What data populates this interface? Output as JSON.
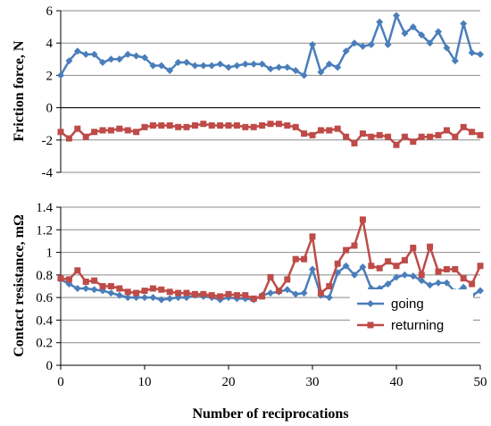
{
  "chart_data": [
    {
      "type": "line",
      "ylabel": "Friction force, N",
      "xlim": [
        0,
        50
      ],
      "ylim": [
        -4,
        6
      ],
      "yticks": [
        -4,
        -2,
        0,
        2,
        4,
        6
      ],
      "xticks": [],
      "grid": true,
      "series": [
        {
          "color": "#4A7EBB",
          "marker": "diamond",
          "x": [
            0,
            1,
            2,
            3,
            4,
            5,
            6,
            7,
            8,
            9,
            10,
            11,
            12,
            13,
            14,
            15,
            16,
            17,
            18,
            19,
            20,
            21,
            22,
            23,
            24,
            25,
            26,
            27,
            28,
            29,
            30,
            31,
            32,
            33,
            34,
            35,
            36,
            37,
            38,
            39,
            40,
            41,
            42,
            43,
            44,
            45,
            46,
            47,
            48,
            49,
            50
          ],
          "y": [
            2.0,
            2.9,
            3.5,
            3.3,
            3.3,
            2.8,
            3.0,
            3.0,
            3.3,
            3.2,
            3.1,
            2.6,
            2.6,
            2.3,
            2.8,
            2.8,
            2.6,
            2.6,
            2.6,
            2.7,
            2.5,
            2.6,
            2.7,
            2.7,
            2.7,
            2.4,
            2.5,
            2.5,
            2.3,
            2.0,
            3.9,
            2.2,
            2.7,
            2.5,
            3.5,
            4.0,
            3.8,
            3.9,
            5.3,
            3.9,
            5.7,
            4.6,
            5.0,
            4.5,
            4.0,
            4.7,
            3.7,
            2.9,
            5.2,
            3.4,
            3.3
          ]
        },
        {
          "color": "#BE4B48",
          "marker": "square",
          "x": [
            0,
            1,
            2,
            3,
            4,
            5,
            6,
            7,
            8,
            9,
            10,
            11,
            12,
            13,
            14,
            15,
            16,
            17,
            18,
            19,
            20,
            21,
            22,
            23,
            24,
            25,
            26,
            27,
            28,
            29,
            30,
            31,
            32,
            33,
            34,
            35,
            36,
            37,
            38,
            39,
            40,
            41,
            42,
            43,
            44,
            45,
            46,
            47,
            48,
            49,
            50
          ],
          "y": [
            -1.5,
            -1.9,
            -1.3,
            -1.8,
            -1.5,
            -1.4,
            -1.4,
            -1.3,
            -1.4,
            -1.5,
            -1.2,
            -1.1,
            -1.1,
            -1.1,
            -1.2,
            -1.2,
            -1.1,
            -1.0,
            -1.1,
            -1.1,
            -1.1,
            -1.1,
            -1.2,
            -1.2,
            -1.1,
            -1.0,
            -1.0,
            -1.1,
            -1.2,
            -1.6,
            -1.7,
            -1.4,
            -1.4,
            -1.3,
            -1.8,
            -2.2,
            -1.6,
            -1.8,
            -1.7,
            -1.8,
            -2.3,
            -1.8,
            -2.1,
            -1.8,
            -1.8,
            -1.7,
            -1.4,
            -1.8,
            -1.2,
            -1.5,
            -1.7
          ]
        }
      ]
    },
    {
      "type": "line",
      "ylabel": "Contact resistance, mΩ",
      "xlabel": "Number of reciprocations",
      "xlim": [
        0,
        50
      ],
      "ylim": [
        0,
        1.4
      ],
      "yticks": [
        0,
        0.2,
        0.4,
        0.6,
        0.8,
        1,
        1.2,
        1.4
      ],
      "ytick_labels": [
        "0",
        "0.2",
        "0.4",
        "0.6",
        "0.8",
        "1",
        "1.2",
        "1.4"
      ],
      "xticks": [
        0,
        10,
        20,
        30,
        40,
        50
      ],
      "grid": true,
      "legend": "bottom-right",
      "series": [
        {
          "name": "going",
          "color": "#4A7EBB",
          "marker": "diamond",
          "x": [
            0,
            1,
            2,
            3,
            4,
            5,
            6,
            7,
            8,
            9,
            10,
            11,
            12,
            13,
            14,
            15,
            16,
            17,
            18,
            19,
            20,
            21,
            22,
            23,
            24,
            25,
            26,
            27,
            28,
            29,
            30,
            31,
            32,
            33,
            34,
            35,
            36,
            37,
            38,
            39,
            40,
            41,
            42,
            43,
            44,
            45,
            46,
            47,
            48,
            49,
            50
          ],
          "y": [
            0.76,
            0.72,
            0.68,
            0.68,
            0.67,
            0.66,
            0.64,
            0.62,
            0.6,
            0.6,
            0.6,
            0.6,
            0.58,
            0.59,
            0.6,
            0.6,
            0.62,
            0.61,
            0.6,
            0.58,
            0.6,
            0.59,
            0.59,
            0.58,
            0.62,
            0.64,
            0.65,
            0.67,
            0.63,
            0.64,
            0.85,
            0.62,
            0.6,
            0.82,
            0.88,
            0.8,
            0.87,
            0.68,
            0.68,
            0.72,
            0.78,
            0.8,
            0.79,
            0.75,
            0.71,
            0.73,
            0.73,
            0.65,
            0.69,
            0.62,
            0.66
          ]
        },
        {
          "name": "returning",
          "color": "#BE4B48",
          "marker": "square",
          "x": [
            0,
            1,
            2,
            3,
            4,
            5,
            6,
            7,
            8,
            9,
            10,
            11,
            12,
            13,
            14,
            15,
            16,
            17,
            18,
            19,
            20,
            21,
            22,
            23,
            24,
            25,
            26,
            27,
            28,
            29,
            30,
            31,
            32,
            33,
            34,
            35,
            36,
            37,
            38,
            39,
            40,
            41,
            42,
            43,
            44,
            45,
            46,
            47,
            48,
            49,
            50
          ],
          "y": [
            0.77,
            0.76,
            0.84,
            0.74,
            0.75,
            0.7,
            0.7,
            0.68,
            0.65,
            0.64,
            0.66,
            0.68,
            0.67,
            0.65,
            0.64,
            0.64,
            0.63,
            0.63,
            0.62,
            0.61,
            0.63,
            0.62,
            0.62,
            0.59,
            0.61,
            0.78,
            0.66,
            0.76,
            0.94,
            0.94,
            1.14,
            0.64,
            0.7,
            0.9,
            1.02,
            1.06,
            1.29,
            0.88,
            0.86,
            0.92,
            0.88,
            0.93,
            1.04,
            0.8,
            1.05,
            0.83,
            0.85,
            0.85,
            0.77,
            0.72,
            0.88
          ]
        }
      ]
    }
  ]
}
